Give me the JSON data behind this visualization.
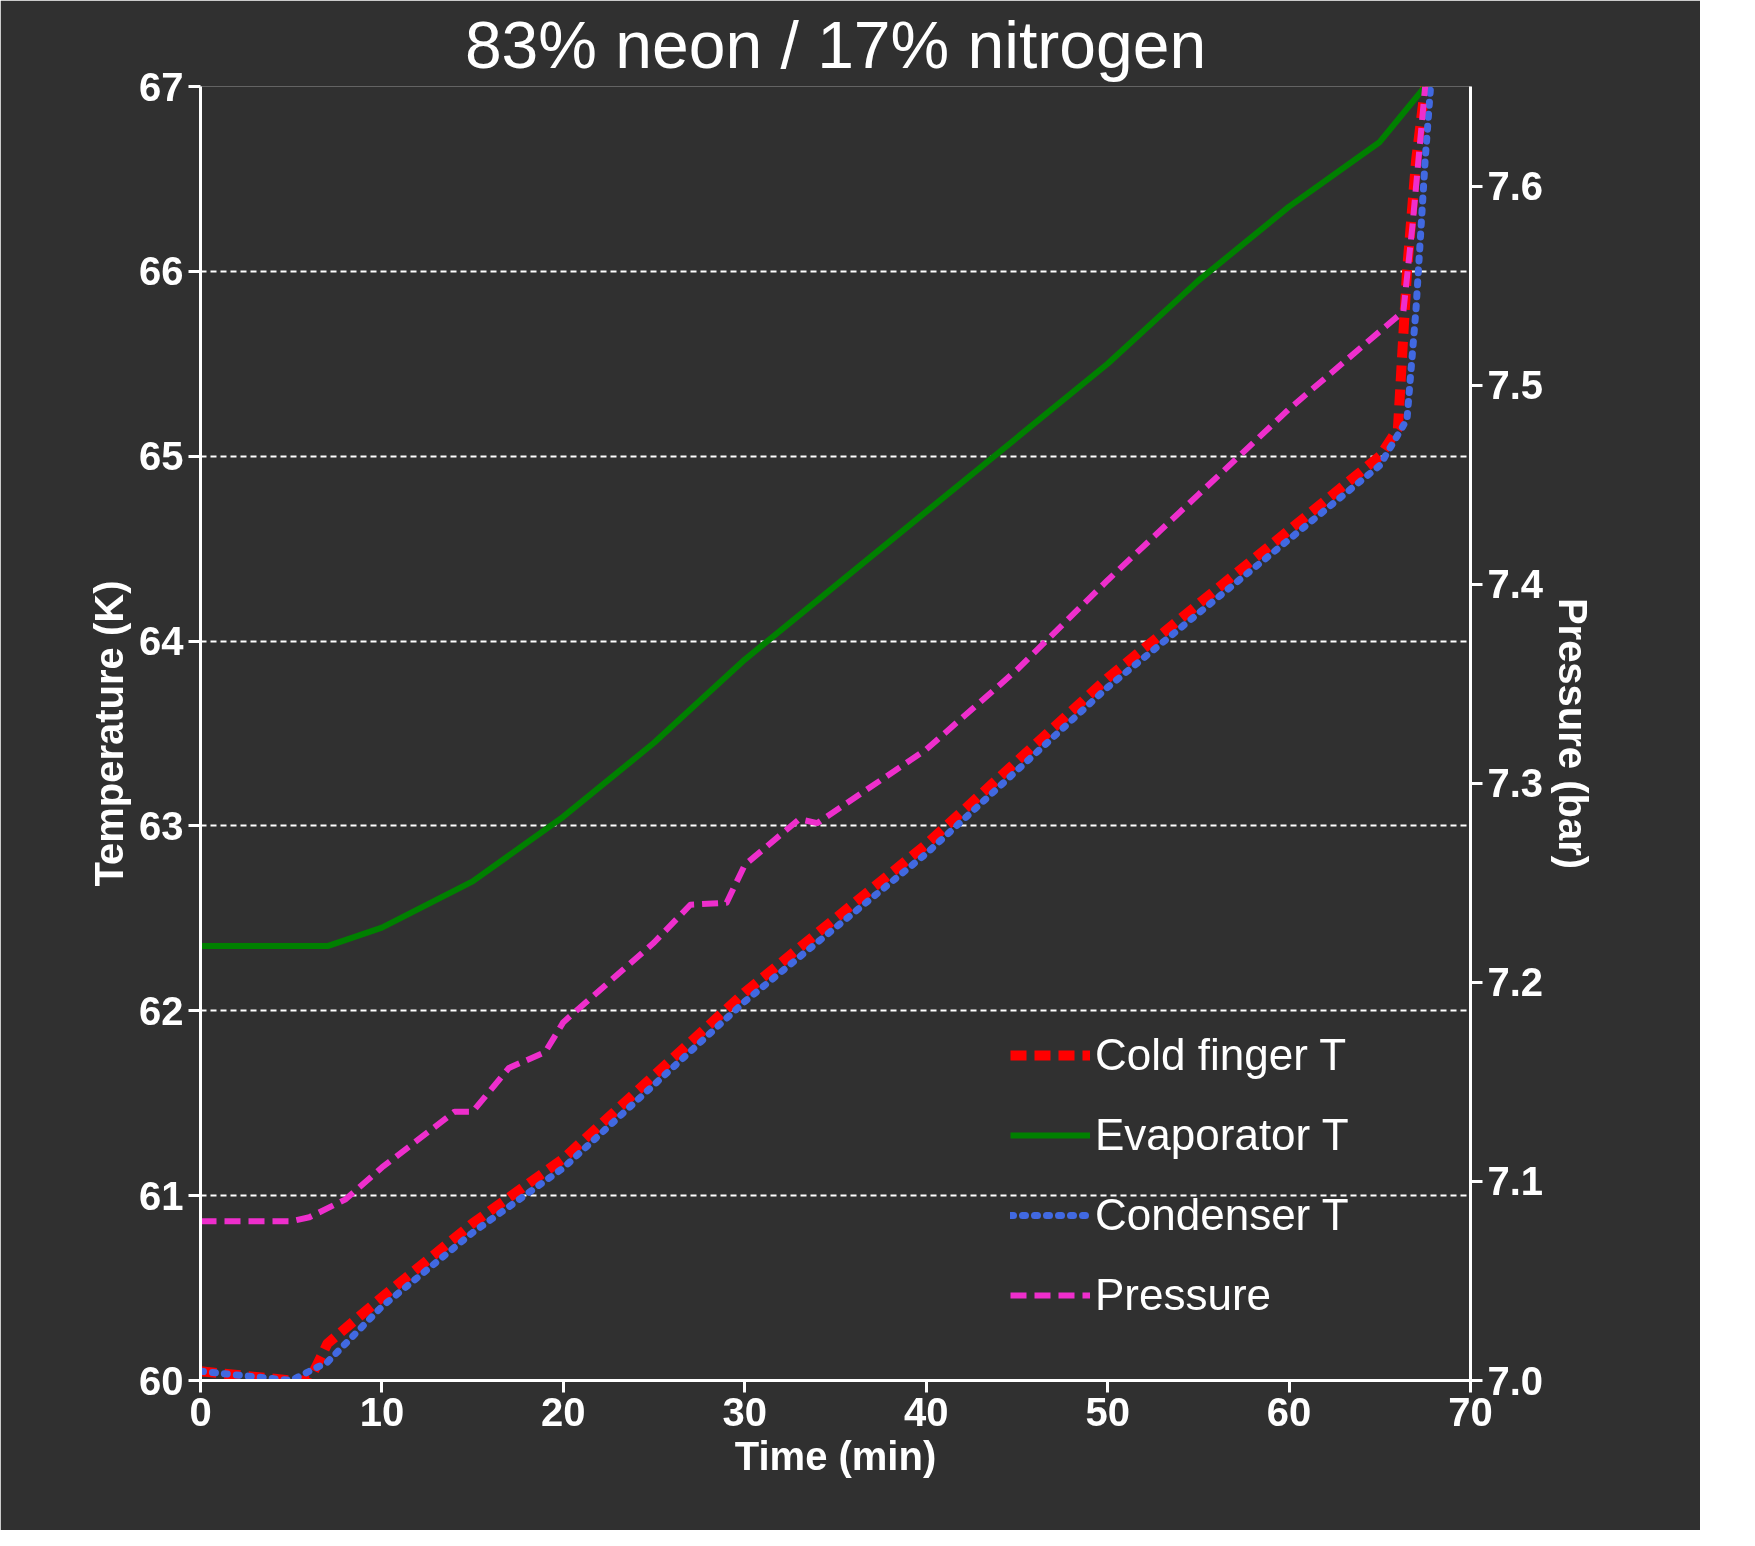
{
  "chart_data": {
    "type": "line",
    "title": "83% neon / 17% nitrogen",
    "xlabel": "Time (min)",
    "ylabel": "Temperature (K)",
    "y2label": "Pressure (bar)",
    "xlim": [
      0,
      70
    ],
    "xticks": [
      0,
      10,
      20,
      30,
      40,
      50,
      60,
      70
    ],
    "ylim": [
      60,
      67
    ],
    "yticks": [
      60,
      61,
      62,
      63,
      64,
      65,
      66,
      67
    ],
    "y2lim": [
      7.0,
      7.65
    ],
    "y2ticks": [
      {
        "value": 7.0,
        "label": "7.0"
      },
      7.1,
      7.2,
      7.3,
      7.4,
      7.5,
      7.6
    ],
    "grid": "y",
    "legend": "bottom right",
    "series": [
      {
        "name": "Cold finger T",
        "color": "#ff0000",
        "line_style": "dashed",
        "x": [
          0,
          5,
          6,
          7,
          10,
          15,
          20,
          25,
          30,
          35,
          40,
          45,
          50,
          55,
          60,
          65,
          66,
          66.5,
          67,
          67.5
        ],
        "values": [
          60.05,
          60.0,
          60.0,
          60.2,
          60.45,
          60.85,
          61.2,
          61.65,
          62.1,
          62.5,
          62.9,
          63.35,
          63.8,
          64.2,
          64.6,
          65.0,
          65.15,
          66.0,
          66.6,
          67.0
        ]
      },
      {
        "name": "Evaporator T",
        "color": "#008000",
        "line_style": "solid",
        "x": [
          0,
          5,
          7,
          10,
          15,
          20,
          25,
          30,
          35,
          40,
          45,
          50,
          55,
          60,
          65,
          67.5
        ],
        "values": [
          62.35,
          62.35,
          62.35,
          62.45,
          62.7,
          63.05,
          63.45,
          63.9,
          64.3,
          64.7,
          65.1,
          65.5,
          65.95,
          66.35,
          66.7,
          67.0
        ]
      },
      {
        "name": "Condenser T",
        "color": "#4169e1",
        "line_style": "dotted",
        "x": [
          0,
          5,
          6,
          7,
          10,
          15,
          20,
          25,
          30,
          35,
          40,
          45,
          50,
          55,
          60,
          65,
          66.5,
          67,
          67.5,
          67.8
        ],
        "values": [
          60.05,
          60.0,
          60.05,
          60.1,
          60.4,
          60.8,
          61.15,
          61.6,
          62.05,
          62.45,
          62.85,
          63.3,
          63.75,
          64.15,
          64.55,
          64.95,
          65.2,
          65.8,
          66.6,
          67.0
        ]
      },
      {
        "name": "Pressure",
        "color": "#ee2ecc",
        "line_style": "dashed",
        "axis": "y2",
        "x": [
          0,
          5,
          6,
          8,
          10,
          14,
          15,
          16,
          17,
          19,
          20,
          25,
          27,
          29,
          30,
          33,
          34,
          40,
          45,
          50,
          55,
          60,
          65,
          66.3,
          66.8,
          67.5
        ],
        "values": [
          7.08,
          7.08,
          7.082,
          7.091,
          7.107,
          7.135,
          7.135,
          7.146,
          7.157,
          7.165,
          7.18,
          7.22,
          7.239,
          7.24,
          7.259,
          7.282,
          7.28,
          7.317,
          7.357,
          7.402,
          7.445,
          7.488,
          7.527,
          7.537,
          7.58,
          7.65
        ]
      }
    ]
  }
}
